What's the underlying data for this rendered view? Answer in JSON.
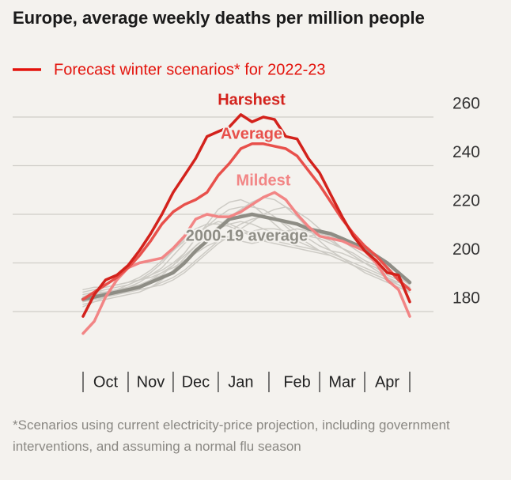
{
  "chart_data": {
    "type": "line",
    "title": "Europe, average weekly deaths per million people",
    "legend": {
      "label": "Forecast winter scenarios* for 2022-23",
      "color": "#e3120b"
    },
    "footnote": "*Scenarios using current electricity-price projection, including government interventions, and assuming a normal flu season",
    "categories": [
      null,
      null,
      "Oct",
      null,
      null,
      null,
      "Nov",
      null,
      null,
      null,
      "Dec",
      null,
      null,
      null,
      "Jan",
      null,
      null,
      null,
      null,
      "Feb",
      null,
      null,
      null,
      "Mar",
      null,
      null,
      null,
      "Apr",
      null,
      null
    ],
    "ylim": [
      170,
      265
    ],
    "yticks": [
      180,
      200,
      220,
      240,
      260
    ],
    "grid": true,
    "series": [
      {
        "color": "#cdcbc5",
        "values": [
          182,
          184,
          186,
          188,
          190,
          192,
          195,
          198,
          203,
          208,
          212,
          215,
          217,
          216,
          214,
          212,
          210,
          209,
          208,
          207,
          206,
          205,
          203,
          201,
          199,
          197,
          195,
          193,
          191,
          189
        ]
      },
      {
        "color": "#cdcbc5",
        "values": [
          186,
          188,
          189,
          190,
          191,
          193,
          195,
          197,
          200,
          204,
          210,
          216,
          222,
          225,
          226,
          224,
          220,
          216,
          212,
          209,
          207,
          205,
          204,
          202,
          200,
          198,
          196,
          194,
          192,
          190
        ]
      },
      {
        "color": "#cdcbc5",
        "values": [
          184,
          185,
          186,
          187,
          188,
          189,
          190,
          191,
          193,
          196,
          200,
          204,
          208,
          211,
          214,
          217,
          220,
          222,
          223,
          221,
          218,
          214,
          210,
          206,
          203,
          200,
          197,
          194,
          191,
          188
        ]
      },
      {
        "color": "#cdcbc5",
        "values": [
          188,
          189,
          190,
          191,
          192,
          194,
          197,
          201,
          205,
          209,
          212,
          213,
          212,
          210,
          209,
          208,
          209,
          211,
          213,
          214,
          213,
          211,
          209,
          206,
          203,
          200,
          198,
          196,
          194,
          192
        ]
      },
      {
        "color": "#cdcbc5",
        "values": [
          183,
          184,
          185,
          186,
          187,
          188,
          190,
          193,
          197,
          202,
          207,
          211,
          214,
          216,
          217,
          216,
          214,
          212,
          210,
          210,
          211,
          212,
          211,
          209,
          206,
          203,
          200,
          197,
          194,
          191
        ]
      },
      {
        "color": "#cdcbc5",
        "values": [
          187,
          188,
          188,
          189,
          190,
          191,
          193,
          195,
          199,
          204,
          210,
          215,
          219,
          222,
          223,
          223,
          222,
          219,
          215,
          211,
          208,
          205,
          203,
          201,
          199,
          197,
          195,
          193,
          191,
          189
        ]
      },
      {
        "color": "#cdcbc5",
        "values": [
          185,
          186,
          187,
          188,
          188,
          189,
          190,
          192,
          194,
          197,
          201,
          205,
          209,
          213,
          216,
          218,
          219,
          218,
          216,
          213,
          210,
          207,
          205,
          204,
          202,
          200,
          198,
          195,
          193,
          190
        ]
      },
      {
        "color": "#cdcbc5",
        "values": [
          186,
          187,
          188,
          189,
          191,
          193,
          196,
          200,
          205,
          210,
          214,
          216,
          216,
          215,
          213,
          211,
          209,
          208,
          207,
          206,
          205,
          204,
          203,
          201,
          199,
          197,
          195,
          193,
          192,
          190
        ]
      },
      {
        "color": "#cdcbc5",
        "values": [
          184,
          185,
          186,
          187,
          189,
          191,
          193,
          196,
          199,
          203,
          207,
          211,
          215,
          219,
          222,
          225,
          227,
          226,
          223,
          219,
          214,
          209,
          205,
          202,
          199,
          196,
          194,
          192,
          190,
          188
        ]
      },
      {
        "color": "#cdcbc5",
        "values": [
          189,
          190,
          190,
          191,
          192,
          193,
          194,
          196,
          198,
          201,
          204,
          207,
          209,
          211,
          212,
          213,
          214,
          214,
          213,
          212,
          211,
          210,
          208,
          206,
          204,
          201,
          199,
          196,
          194,
          192
        ]
      },
      {
        "name": "2000-19 average",
        "color": "#8e8d85",
        "values": [
          185,
          186,
          187,
          188,
          189,
          190,
          192,
          194,
          196,
          200,
          205,
          209,
          214,
          218,
          219,
          220,
          219,
          218,
          217,
          216,
          214,
          213,
          212,
          210,
          208,
          206,
          203,
          200,
          196,
          192
        ]
      },
      {
        "name": "Mildest",
        "color": "#f28585",
        "values": [
          171,
          176,
          186,
          193,
          198,
          200,
          201,
          202,
          206,
          211,
          218,
          220,
          219,
          219,
          221,
          224,
          227,
          229,
          226,
          220,
          215,
          211,
          210,
          209,
          207,
          205,
          200,
          193,
          189,
          178
        ]
      },
      {
        "name": "Average",
        "color": "#e8504b",
        "values": [
          185,
          188,
          191,
          194,
          198,
          203,
          209,
          216,
          221,
          224,
          226,
          229,
          236,
          241,
          247,
          249,
          249,
          248,
          247,
          244,
          238,
          232,
          225,
          218,
          212,
          207,
          203,
          198,
          193,
          189
        ]
      },
      {
        "name": "Harshest",
        "color": "#d3221c",
        "values": [
          178,
          187,
          193,
          195,
          199,
          205,
          212,
          220,
          229,
          236,
          243,
          252,
          254,
          256,
          261,
          258,
          260,
          259,
          252,
          251,
          243,
          237,
          228,
          219,
          211,
          205,
          201,
          196,
          195,
          184
        ]
      }
    ]
  }
}
